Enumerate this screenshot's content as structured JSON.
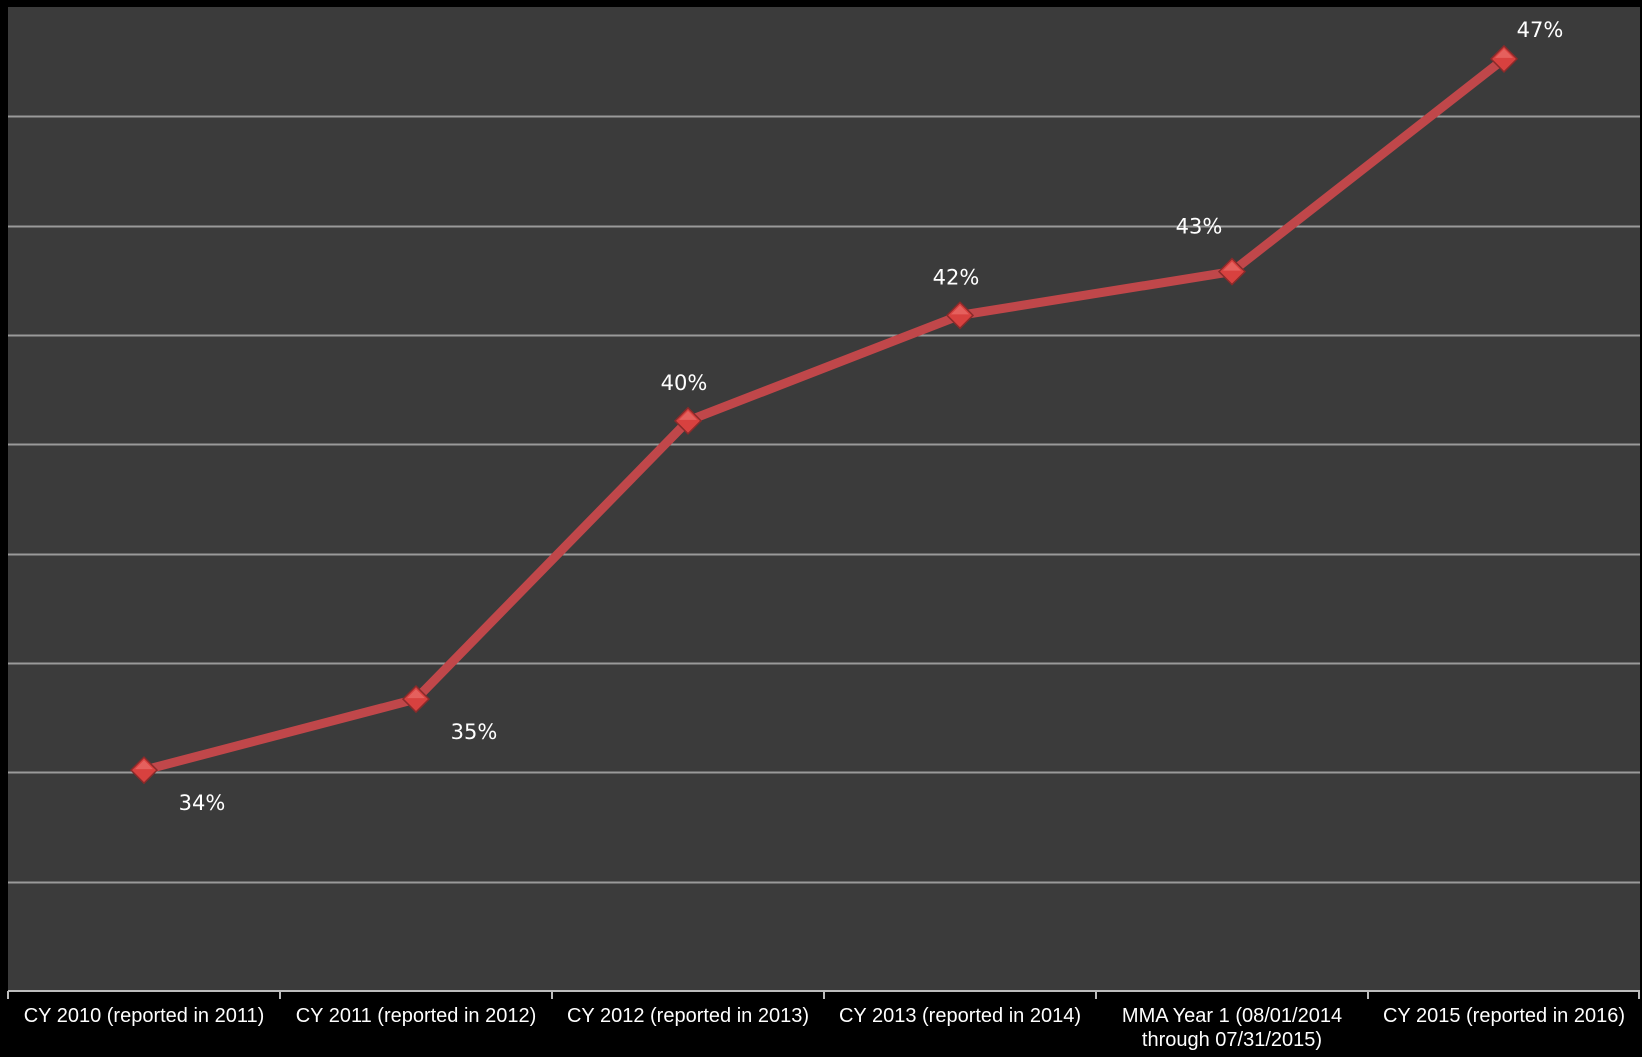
{
  "colors": {
    "page_background": "#000000",
    "plot_background": "#3b3b3b",
    "gridline": "#9a9a9a",
    "axis_line": "#bdbdbd",
    "series_line": "#c0474a",
    "marker_fill": "#d8413f",
    "marker_highlight": "#f07a76",
    "label_text": "#ffffff"
  },
  "chart_data": {
    "type": "line",
    "title": "",
    "xlabel": "",
    "ylabel": "",
    "y_axis_visible": false,
    "grid": "horizontal",
    "ylim": [
      0.3,
      0.48
    ],
    "y_grid_step": 0.02,
    "categories": [
      [
        "CY 2010 (reported in 2011)"
      ],
      [
        "CY 2011 (reported in 2012)"
      ],
      [
        "CY 2012 (reported in 2013)"
      ],
      [
        "CY 2013 (reported in 2014)"
      ],
      [
        "MMA Year 1 (08/01/2014",
        "through 07/31/2015)"
      ],
      [
        "CY 2015 (reported in 2016)"
      ]
    ],
    "series": [
      {
        "values": [
          0.3404,
          0.3534,
          0.4043,
          0.4236,
          0.4316,
          0.4705
        ],
        "labels": [
          "34%",
          "35%",
          "40%",
          "42%",
          "43%",
          "47%"
        ],
        "label_positions": [
          "below-right",
          "below-right",
          "above",
          "above",
          "above-left",
          "above-right"
        ],
        "marker": "diamond"
      }
    ]
  }
}
